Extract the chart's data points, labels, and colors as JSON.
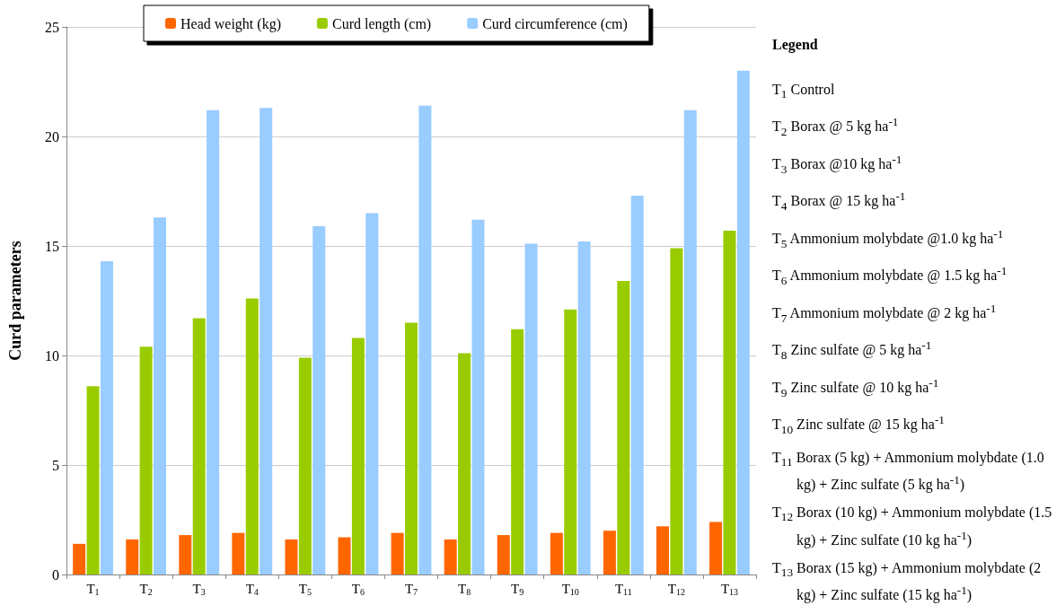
{
  "chart_data": {
    "type": "bar",
    "ylabel": "Curd parameters",
    "categories": [
      "T$_{1}$",
      "T$_{2}$",
      "T$_{3}$",
      "T$_{4}$",
      "T$_{5}$",
      "T$_{6}$",
      "T$_{7}$",
      "T$_{8}$",
      "T$_{9}$",
      "T$_{10}$",
      "T$_{11}$",
      "T$_{12}$",
      "T$_{13}$"
    ],
    "series": [
      {
        "name": "Head weight (kg)",
        "color": "#ff6600",
        "values": [
          1.4,
          1.6,
          1.8,
          1.9,
          1.6,
          1.7,
          1.9,
          1.6,
          1.8,
          1.9,
          2.0,
          2.2,
          2.4
        ]
      },
      {
        "name": "Curd length (cm)",
        "color": "#99cc00",
        "values": [
          8.6,
          10.4,
          11.7,
          12.6,
          9.9,
          10.8,
          11.5,
          10.1,
          11.2,
          12.1,
          13.4,
          14.9,
          15.7
        ]
      },
      {
        "name": "Curd circumference (cm)",
        "color": "#99ccff",
        "values": [
          14.3,
          16.3,
          21.2,
          21.3,
          15.9,
          16.5,
          21.4,
          16.2,
          15.1,
          15.2,
          17.3,
          21.2,
          23.0
        ]
      }
    ],
    "ylim": [
      0,
      25
    ],
    "yticks": [
      0,
      5,
      10,
      15,
      20,
      25
    ],
    "grid": "y",
    "legend": "top",
    "annotations": [
      "Legend",
      "T$_{1}$ Control",
      "T$_{2}$ Borax @ 5 kg ha$^{-1}$",
      "T$_{3}$ Borax @10 kg ha$^{-1}$",
      "T$_{4}$ Borax @ 15 kg ha$^{-1}$",
      "T$_{5}$ Ammonium molybdate @1.0 kg ha$^{-1}$",
      "T$_{6}$ Ammonium molybdate @ 1.5 kg ha$^{-1}$",
      "T$_{7}$ Ammonium molybdate @ 2 kg ha$^{-1}$",
      "T$_{8}$ Zinc sulfate @ 5 kg ha$^{-1}$",
      "T$_{9}$ Zinc sulfate @ 10 kg ha$^{-1}$",
      "T$_{10}$ Zinc sulfate @ 15 kg ha$^{-1}$",
      "T$_{11}$ Borax (5 kg) + Ammonium molybdate (1.0 kg) + Zinc sulfate (5 kg ha$^{-1}$)",
      "T$_{12}$ Borax (10 kg) + Ammonium molybdate (1.5 kg) + Zinc sulfate (10 kg ha$^{-1}$)",
      "T$_{13}$ Borax (15 kg) + Ammonium molybdate (2 kg) + Zinc sulfate (15 kg ha$^{-1}$)"
    ]
  }
}
